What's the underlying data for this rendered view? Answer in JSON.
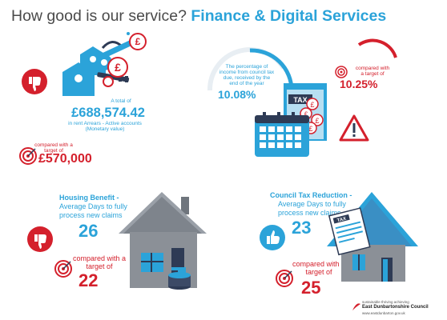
{
  "header": {
    "title_plain": "How good is our service?",
    "title_bold": "Finance & Digital Services"
  },
  "arrears": {
    "intro": "A total of",
    "amount": "£688,574.42",
    "desc_line1": "in rent Arrears - Active accounts",
    "desc_line2": "(Monetary value)",
    "target_line1": "compared with a",
    "target_line2": "target of",
    "target": "£570,000"
  },
  "council_tax": {
    "desc_line1": "The percentage of",
    "desc_line2": "income from council tax",
    "desc_line3": "due, received by the",
    "desc_line4": "end of the year",
    "value": "10.08%",
    "target_line1": "compared with",
    "target_line2": "a target of",
    "target": "10.25%",
    "icon_label": "TAX"
  },
  "housing_benefit": {
    "title": "Housing Benefit -",
    "desc_line1": "Average Days to fully",
    "desc_line2": "process new claims",
    "value": "26",
    "target_line1": "compared with a",
    "target_line2": "target of",
    "target": "22"
  },
  "ctr": {
    "title": "Council Tax Reduction -",
    "desc_line1": "Average Days to fully",
    "desc_line2": "process new claims",
    "value": "23",
    "target_line1": "compared with a",
    "target_line2": "target of",
    "target": "25",
    "doc_label": "TAX"
  },
  "footer": {
    "tagline": "sustainable thriving achieving",
    "org": "East Dunbartonshire Council",
    "url": "www.eastdunbarton.gov.uk"
  },
  "colors": {
    "accent_blue": "#2ba3d9",
    "alert_red": "#d4202c",
    "house_grey": "#8b9097",
    "dark_navy": "#2e3b55"
  },
  "icons": [
    "thumbs-down-icon",
    "thumbs-up-icon",
    "target-icon",
    "keys-icon",
    "pound-coin-icon",
    "calendar-icon",
    "warning-icon",
    "house-icon",
    "tax-document-icon"
  ]
}
